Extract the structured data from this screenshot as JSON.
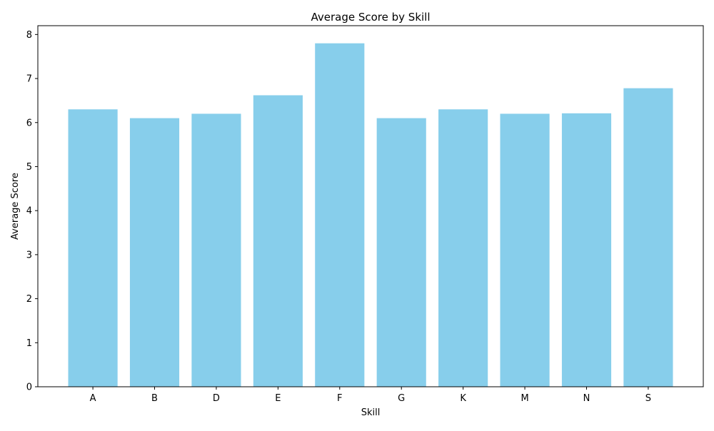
{
  "chart_data": {
    "type": "bar",
    "title": "Average Score by Skill",
    "xlabel": "Skill",
    "ylabel": "Average Score",
    "categories": [
      "A",
      "B",
      "D",
      "E",
      "F",
      "G",
      "K",
      "M",
      "N",
      "S"
    ],
    "values": [
      6.3,
      6.1,
      6.2,
      6.62,
      7.8,
      6.1,
      6.3,
      6.2,
      6.21,
      6.78
    ],
    "ylim": [
      0,
      8.2
    ],
    "yticks": [
      "0",
      "1",
      "2",
      "3",
      "4",
      "5",
      "6",
      "7",
      "8"
    ],
    "grid": false,
    "legend": "none",
    "bar_color": "#87CEEB"
  }
}
